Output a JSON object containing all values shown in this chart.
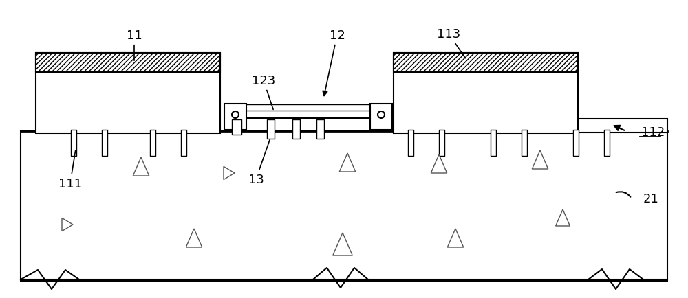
{
  "bg_color": "#ffffff",
  "line_color": "#000000",
  "fig_width": 10.0,
  "fig_height": 4.35,
  "dpi": 100
}
